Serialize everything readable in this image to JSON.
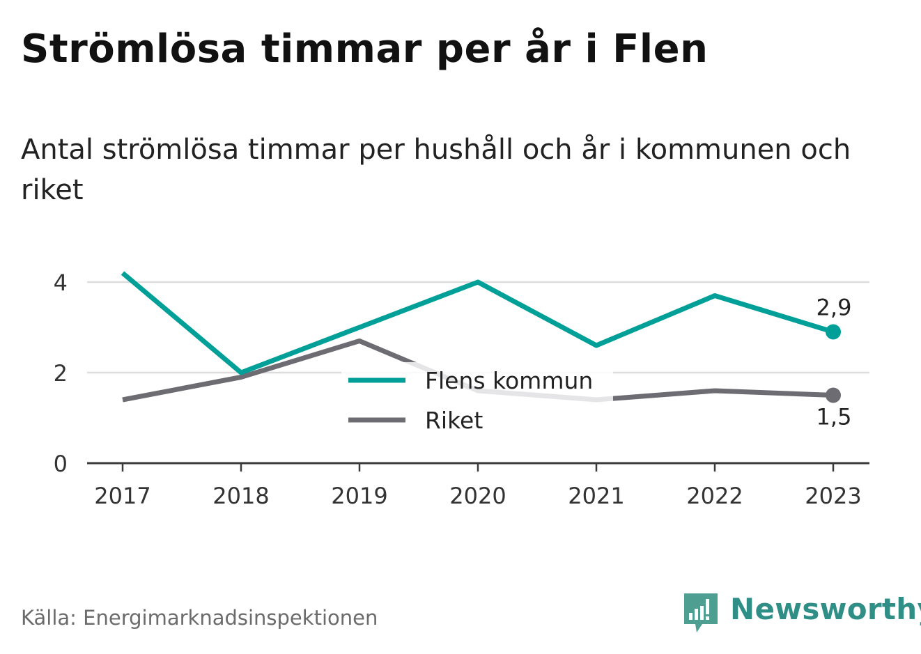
{
  "title": "Strömlösa timmar per år i Flen",
  "subtitle": "Antal strömlösa timmar per hushåll och år i kommunen och riket",
  "source": "Källa: Energimarknadsinspektionen",
  "brand": "Newsworthy",
  "chart_data": {
    "type": "line",
    "x": [
      "2017",
      "2018",
      "2019",
      "2020",
      "2021",
      "2022",
      "2023"
    ],
    "series": [
      {
        "name": "Flens kommun",
        "color": "#009f98",
        "values": [
          4.2,
          2.0,
          3.0,
          4.0,
          2.6,
          3.7,
          2.9
        ]
      },
      {
        "name": "Riket",
        "color": "#6d6c73",
        "values": [
          1.4,
          1.9,
          2.7,
          1.6,
          1.4,
          1.6,
          1.5
        ]
      }
    ],
    "y_ticks": [
      "0",
      "2",
      "4"
    ],
    "ylim": [
      0,
      4.3
    ],
    "end_labels": [
      "2,9",
      "1,5"
    ],
    "grid": true,
    "legend_position": "center"
  }
}
